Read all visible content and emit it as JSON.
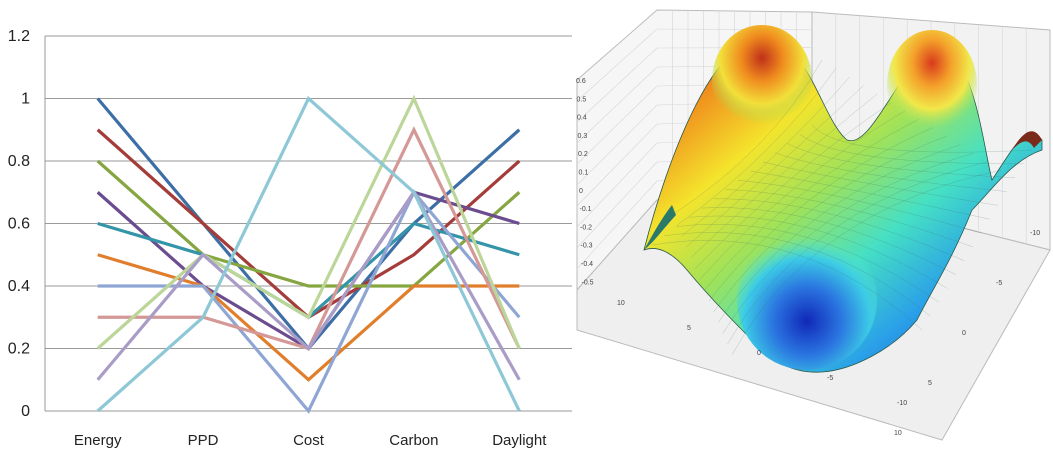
{
  "chart_data": [
    {
      "type": "line",
      "categories": [
        "Energy",
        "PPD",
        "Cost",
        "Carbon",
        "Daylight"
      ],
      "ylim": [
        0,
        1.2
      ],
      "yticks": [
        "0",
        "0.2",
        "0.4",
        "0.6",
        "0.8",
        "1",
        "1.2"
      ],
      "grid": true,
      "legend": "none",
      "series": [
        {
          "color": "#3d6fa6",
          "values": [
            1.0,
            0.6,
            0.2,
            0.6,
            0.9
          ]
        },
        {
          "color": "#a43d3a",
          "values": [
            0.9,
            0.6,
            0.3,
            0.5,
            0.8
          ]
        },
        {
          "color": "#86a642",
          "values": [
            0.8,
            0.5,
            0.4,
            0.4,
            0.7
          ]
        },
        {
          "color": "#6b4c8f",
          "values": [
            0.7,
            0.4,
            0.2,
            0.7,
            0.6
          ]
        },
        {
          "color": "#3494a8",
          "values": [
            0.6,
            0.5,
            0.3,
            0.6,
            0.5
          ]
        },
        {
          "color": "#e07e2c",
          "values": [
            0.5,
            0.4,
            0.1,
            0.4,
            0.4
          ]
        },
        {
          "color": "#8fa6d4",
          "values": [
            0.4,
            0.4,
            0.0,
            0.7,
            0.3
          ]
        },
        {
          "color": "#d49896",
          "values": [
            0.3,
            0.3,
            0.2,
            0.9,
            0.2
          ]
        },
        {
          "color": "#bcd69a",
          "values": [
            0.2,
            0.5,
            0.3,
            1.0,
            0.2
          ]
        },
        {
          "color": "#a99cc6",
          "values": [
            0.1,
            0.5,
            0.2,
            0.7,
            0.1
          ]
        },
        {
          "color": "#8ec8d6",
          "values": [
            0.0,
            0.3,
            1.0,
            0.7,
            0.0
          ]
        }
      ]
    },
    {
      "type": "surface-3d",
      "zticks": [
        "0.6",
        "0.5",
        "0.4",
        "0.3",
        "0.2",
        "0.1",
        "0",
        "-0.1",
        "-0.2",
        "-0.3",
        "-0.4",
        "-0.5"
      ],
      "xticks": [
        "-10",
        "-5",
        "0",
        "5",
        "10"
      ],
      "yticks": [
        "-10",
        "-5",
        "0",
        "5",
        "10"
      ],
      "colormap": "jet"
    }
  ]
}
